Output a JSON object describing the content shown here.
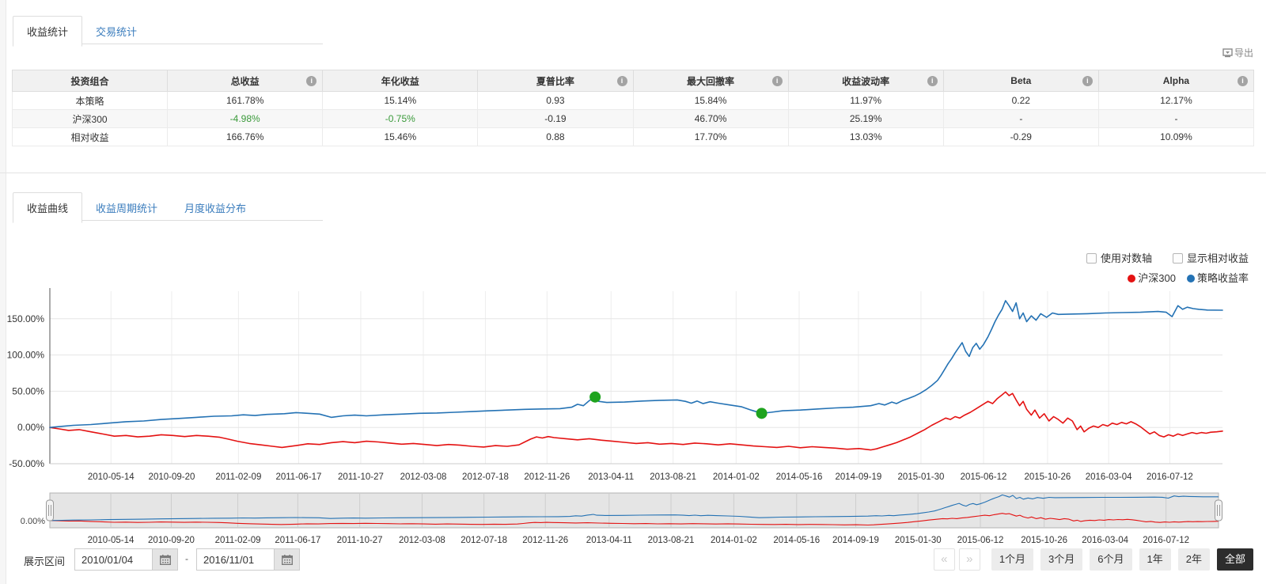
{
  "top_tabs": [
    {
      "label": "收益统计",
      "active": true
    },
    {
      "label": "交易统计",
      "active": false
    }
  ],
  "export": {
    "label": "导出"
  },
  "stats_table": {
    "columns": [
      {
        "label": "投资组合",
        "info": false
      },
      {
        "label": "总收益",
        "info": true
      },
      {
        "label": "年化收益",
        "info": false
      },
      {
        "label": "夏普比率",
        "info": true
      },
      {
        "label": "最大回撤率",
        "info": true
      },
      {
        "label": "收益波动率",
        "info": true
      },
      {
        "label": "Beta",
        "info": true
      },
      {
        "label": "Alpha",
        "info": true
      }
    ],
    "rows": [
      {
        "cells": [
          "本策略",
          "161.78%",
          "15.14%",
          "0.93",
          "15.84%",
          "11.97%",
          "0.22",
          "12.17%"
        ],
        "green": []
      },
      {
        "cells": [
          "沪深300",
          "-4.98%",
          "-0.75%",
          "-0.19",
          "46.70%",
          "25.19%",
          "-",
          "-"
        ],
        "green": [
          1,
          2
        ]
      },
      {
        "cells": [
          "相对收益",
          "166.76%",
          "15.46%",
          "0.88",
          "17.70%",
          "13.03%",
          "-0.29",
          "10.09%"
        ],
        "green": []
      }
    ]
  },
  "chart_tabs": [
    {
      "label": "收益曲线",
      "active": true
    },
    {
      "label": "收益周期统计",
      "active": false
    },
    {
      "label": "月度收益分布",
      "active": false
    }
  ],
  "checkboxes": [
    {
      "label": "使用对数轴",
      "checked": false
    },
    {
      "label": "显示相对收益",
      "checked": false
    }
  ],
  "chart_data": {
    "type": "line",
    "x_start": "2010/01/04",
    "x_end": "2016/11/01",
    "x_ticks": [
      "2010-05-14",
      "2010-09-20",
      "2011-02-09",
      "2011-06-17",
      "2011-10-27",
      "2012-03-08",
      "2012-07-18",
      "2012-11-26",
      "2013-04-11",
      "2013-08-21",
      "2014-01-02",
      "2014-05-16",
      "2014-09-19",
      "2015-01-30",
      "2015-06-12",
      "2015-10-26",
      "2016-03-04",
      "2016-07-12"
    ],
    "y_ticks": [
      {
        "v": 150,
        "label": "150.00%"
      },
      {
        "v": 100,
        "label": "100.00%"
      },
      {
        "v": 50,
        "label": "50.00%"
      },
      {
        "v": 0,
        "label": "0.00%"
      },
      {
        "v": -50,
        "label": "-50.00%"
      }
    ],
    "ylim": [
      -50,
      188
    ],
    "grid": true,
    "legend_position": "top-right",
    "series": [
      {
        "name": "沪深300",
        "color": "#e41212",
        "points": [
          [
            0,
            0
          ],
          [
            0.008,
            -2
          ],
          [
            0.016,
            -4
          ],
          [
            0.025,
            -3
          ],
          [
            0.035,
            -6
          ],
          [
            0.045,
            -9
          ],
          [
            0.055,
            -12
          ],
          [
            0.065,
            -11
          ],
          [
            0.075,
            -13
          ],
          [
            0.085,
            -12
          ],
          [
            0.095,
            -10
          ],
          [
            0.105,
            -11
          ],
          [
            0.115,
            -12.5
          ],
          [
            0.125,
            -11
          ],
          [
            0.135,
            -12
          ],
          [
            0.145,
            -13.5
          ],
          [
            0.152,
            -16
          ],
          [
            0.16,
            -19
          ],
          [
            0.17,
            -22
          ],
          [
            0.18,
            -24
          ],
          [
            0.19,
            -26
          ],
          [
            0.198,
            -27.5
          ],
          [
            0.21,
            -25
          ],
          [
            0.22,
            -22.5
          ],
          [
            0.23,
            -23.5
          ],
          [
            0.24,
            -21
          ],
          [
            0.25,
            -19.5
          ],
          [
            0.26,
            -21
          ],
          [
            0.27,
            -19
          ],
          [
            0.28,
            -20
          ],
          [
            0.29,
            -21.5
          ],
          [
            0.3,
            -23
          ],
          [
            0.31,
            -22
          ],
          [
            0.32,
            -23.5
          ],
          [
            0.33,
            -25
          ],
          [
            0.34,
            -23.5
          ],
          [
            0.35,
            -24.5
          ],
          [
            0.36,
            -26
          ],
          [
            0.37,
            -27
          ],
          [
            0.38,
            -25
          ],
          [
            0.39,
            -26
          ],
          [
            0.4,
            -24
          ],
          [
            0.405,
            -20
          ],
          [
            0.41,
            -16
          ],
          [
            0.415,
            -13
          ],
          [
            0.42,
            -14.5
          ],
          [
            0.425,
            -12.5
          ],
          [
            0.43,
            -14
          ],
          [
            0.44,
            -15.5
          ],
          [
            0.45,
            -17
          ],
          [
            0.46,
            -15.5
          ],
          [
            0.47,
            -17.5
          ],
          [
            0.48,
            -19
          ],
          [
            0.49,
            -20.5
          ],
          [
            0.5,
            -22
          ],
          [
            0.51,
            -21
          ],
          [
            0.52,
            -23
          ],
          [
            0.53,
            -22
          ],
          [
            0.54,
            -23.5
          ],
          [
            0.55,
            -21.5
          ],
          [
            0.56,
            -22.5
          ],
          [
            0.57,
            -24
          ],
          [
            0.58,
            -22.5
          ],
          [
            0.59,
            -24
          ],
          [
            0.6,
            -25.5
          ],
          [
            0.61,
            -26.5
          ],
          [
            0.62,
            -27.5
          ],
          [
            0.63,
            -26
          ],
          [
            0.64,
            -28
          ],
          [
            0.65,
            -26.5
          ],
          [
            0.66,
            -27.5
          ],
          [
            0.67,
            -28.5
          ],
          [
            0.68,
            -30
          ],
          [
            0.69,
            -29
          ],
          [
            0.7,
            -31
          ],
          [
            0.705,
            -29.5
          ],
          [
            0.71,
            -27
          ],
          [
            0.716,
            -24
          ],
          [
            0.722,
            -21
          ],
          [
            0.728,
            -17
          ],
          [
            0.734,
            -13
          ],
          [
            0.74,
            -8
          ],
          [
            0.746,
            -3
          ],
          [
            0.752,
            3
          ],
          [
            0.758,
            8
          ],
          [
            0.764,
            13
          ],
          [
            0.768,
            11
          ],
          [
            0.772,
            15
          ],
          [
            0.776,
            13
          ],
          [
            0.78,
            17
          ],
          [
            0.785,
            21
          ],
          [
            0.79,
            26
          ],
          [
            0.795,
            31
          ],
          [
            0.8,
            36
          ],
          [
            0.804,
            33
          ],
          [
            0.808,
            40
          ],
          [
            0.812,
            45
          ],
          [
            0.815,
            49
          ],
          [
            0.818,
            44
          ],
          [
            0.821,
            47
          ],
          [
            0.824,
            38
          ],
          [
            0.827,
            30
          ],
          [
            0.83,
            36
          ],
          [
            0.833,
            25
          ],
          [
            0.837,
            17
          ],
          [
            0.84,
            24
          ],
          [
            0.844,
            13
          ],
          [
            0.848,
            19
          ],
          [
            0.852,
            9
          ],
          [
            0.856,
            15
          ],
          [
            0.86,
            11
          ],
          [
            0.864,
            6
          ],
          [
            0.868,
            13
          ],
          [
            0.872,
            9
          ],
          [
            0.876,
            -3
          ],
          [
            0.879,
            2
          ],
          [
            0.882,
            -6
          ],
          [
            0.886,
            -1
          ],
          [
            0.89,
            2
          ],
          [
            0.894,
            0
          ],
          [
            0.898,
            4
          ],
          [
            0.902,
            2
          ],
          [
            0.906,
            6
          ],
          [
            0.91,
            4
          ],
          [
            0.914,
            7
          ],
          [
            0.918,
            5
          ],
          [
            0.922,
            8
          ],
          [
            0.926,
            5
          ],
          [
            0.93,
            1
          ],
          [
            0.934,
            -4
          ],
          [
            0.938,
            -9
          ],
          [
            0.942,
            -6
          ],
          [
            0.946,
            -11
          ],
          [
            0.95,
            -13
          ],
          [
            0.954,
            -10
          ],
          [
            0.958,
            -12
          ],
          [
            0.962,
            -9
          ],
          [
            0.966,
            -11
          ],
          [
            0.97,
            -9
          ],
          [
            0.974,
            -7
          ],
          [
            0.978,
            -8.5
          ],
          [
            0.982,
            -7
          ],
          [
            0.986,
            -8
          ],
          [
            0.99,
            -6.5
          ],
          [
            0.995,
            -6
          ],
          [
            1,
            -4.98
          ]
        ]
      },
      {
        "name": "策略收益率",
        "color": "#2472b4",
        "points": [
          [
            0,
            0
          ],
          [
            0.01,
            1.5
          ],
          [
            0.02,
            3
          ],
          [
            0.035,
            4
          ],
          [
            0.05,
            6
          ],
          [
            0.065,
            8
          ],
          [
            0.08,
            9
          ],
          [
            0.095,
            11
          ],
          [
            0.11,
            12.5
          ],
          [
            0.125,
            14
          ],
          [
            0.14,
            15.5
          ],
          [
            0.155,
            16
          ],
          [
            0.165,
            17.5
          ],
          [
            0.175,
            16.5
          ],
          [
            0.185,
            18
          ],
          [
            0.2,
            19
          ],
          [
            0.21,
            20.5
          ],
          [
            0.22,
            19.5
          ],
          [
            0.23,
            18.5
          ],
          [
            0.24,
            14
          ],
          [
            0.25,
            16
          ],
          [
            0.26,
            17
          ],
          [
            0.27,
            16
          ],
          [
            0.285,
            17.5
          ],
          [
            0.3,
            18.5
          ],
          [
            0.315,
            19.5
          ],
          [
            0.33,
            20
          ],
          [
            0.345,
            21
          ],
          [
            0.36,
            22
          ],
          [
            0.375,
            23
          ],
          [
            0.39,
            24
          ],
          [
            0.405,
            25
          ],
          [
            0.42,
            25.5
          ],
          [
            0.435,
            26
          ],
          [
            0.445,
            28
          ],
          [
            0.45,
            32
          ],
          [
            0.455,
            30
          ],
          [
            0.46,
            37
          ],
          [
            0.463,
            40
          ],
          [
            0.465,
            42
          ],
          [
            0.468,
            36
          ],
          [
            0.475,
            34.5
          ],
          [
            0.49,
            35
          ],
          [
            0.505,
            36.5
          ],
          [
            0.52,
            37.5
          ],
          [
            0.535,
            38
          ],
          [
            0.542,
            36
          ],
          [
            0.547,
            33.5
          ],
          [
            0.552,
            36.5
          ],
          [
            0.557,
            33
          ],
          [
            0.563,
            35.5
          ],
          [
            0.57,
            33.5
          ],
          [
            0.58,
            31
          ],
          [
            0.59,
            28.5
          ],
          [
            0.598,
            24
          ],
          [
            0.607,
            19.5
          ],
          [
            0.615,
            21
          ],
          [
            0.625,
            23
          ],
          [
            0.64,
            24
          ],
          [
            0.655,
            25.5
          ],
          [
            0.67,
            27
          ],
          [
            0.685,
            28
          ],
          [
            0.7,
            30
          ],
          [
            0.707,
            33
          ],
          [
            0.712,
            31
          ],
          [
            0.718,
            35
          ],
          [
            0.722,
            33
          ],
          [
            0.727,
            37
          ],
          [
            0.732,
            40
          ],
          [
            0.737,
            43
          ],
          [
            0.742,
            47
          ],
          [
            0.747,
            52
          ],
          [
            0.752,
            58
          ],
          [
            0.757,
            65
          ],
          [
            0.76,
            72
          ],
          [
            0.763,
            80
          ],
          [
            0.766,
            88
          ],
          [
            0.769,
            95
          ],
          [
            0.772,
            103
          ],
          [
            0.775,
            110
          ],
          [
            0.778,
            117
          ],
          [
            0.781,
            105
          ],
          [
            0.784,
            98
          ],
          [
            0.787,
            110
          ],
          [
            0.79,
            116
          ],
          [
            0.793,
            108
          ],
          [
            0.796,
            114
          ],
          [
            0.8,
            125
          ],
          [
            0.803,
            135
          ],
          [
            0.806,
            146
          ],
          [
            0.809,
            155
          ],
          [
            0.812,
            163
          ],
          [
            0.815,
            175
          ],
          [
            0.818,
            168
          ],
          [
            0.821,
            160
          ],
          [
            0.824,
            172
          ],
          [
            0.827,
            150
          ],
          [
            0.83,
            158
          ],
          [
            0.833,
            146
          ],
          [
            0.837,
            154
          ],
          [
            0.841,
            148
          ],
          [
            0.845,
            157
          ],
          [
            0.85,
            152
          ],
          [
            0.855,
            158
          ],
          [
            0.86,
            156
          ],
          [
            0.87,
            156.5
          ],
          [
            0.885,
            157
          ],
          [
            0.9,
            158
          ],
          [
            0.915,
            158.5
          ],
          [
            0.93,
            159
          ],
          [
            0.945,
            160
          ],
          [
            0.952,
            159
          ],
          [
            0.957,
            153
          ],
          [
            0.962,
            168
          ],
          [
            0.966,
            163
          ],
          [
            0.97,
            166
          ],
          [
            0.975,
            164
          ],
          [
            0.98,
            163
          ],
          [
            0.987,
            162
          ],
          [
            1,
            161.8
          ]
        ]
      }
    ],
    "markers": [
      {
        "series": "策略收益率",
        "t": 0.465,
        "value": 42,
        "color": "#1ea31e"
      },
      {
        "series": "策略收益率",
        "t": 0.607,
        "value": 19.5,
        "color": "#1ea31e"
      }
    ],
    "navigator": {
      "zero_label": "0.00%"
    }
  },
  "range_bar": {
    "label": "展示区间",
    "start_date": "2010/01/04",
    "end_date": "2016/11/01",
    "separator": "-",
    "pager": [
      "«",
      "»"
    ],
    "buttons": [
      {
        "label": "1个月",
        "active": false
      },
      {
        "label": "3个月",
        "active": false
      },
      {
        "label": "6个月",
        "active": false
      },
      {
        "label": "1年",
        "active": false
      },
      {
        "label": "2年",
        "active": false
      },
      {
        "label": "全部",
        "active": true
      }
    ]
  }
}
